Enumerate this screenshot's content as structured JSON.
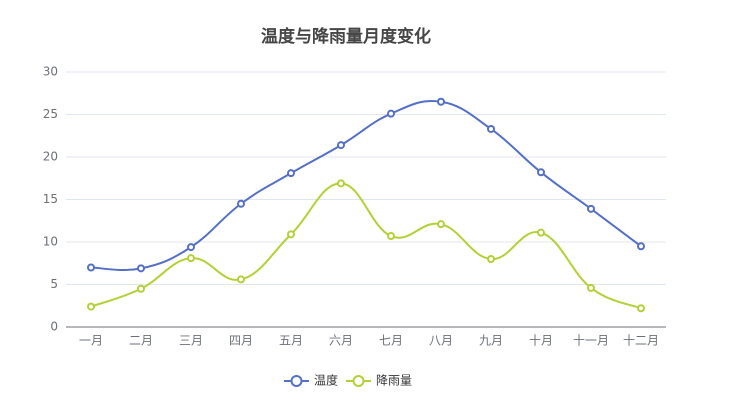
{
  "chart_data": {
    "type": "line",
    "title": "温度与降雨量月度变化",
    "categories": [
      "一月",
      "二月",
      "三月",
      "四月",
      "五月",
      "六月",
      "七月",
      "八月",
      "九月",
      "十月",
      "十一月",
      "十二月"
    ],
    "series": [
      {
        "name": "温度",
        "color": "#5470c6",
        "values": [
          7.0,
          6.9,
          9.4,
          14.5,
          18.1,
          21.4,
          25.1,
          26.5,
          23.3,
          18.2,
          13.9,
          9.5
        ]
      },
      {
        "name": "降雨量",
        "color": "#b3d136",
        "values": [
          2.4,
          4.5,
          8.1,
          5.6,
          10.9,
          16.9,
          10.7,
          12.1,
          8.0,
          11.1,
          4.6,
          2.2
        ]
      }
    ],
    "ylim": [
      0,
      30
    ],
    "yticks": [
      0,
      5,
      10,
      15,
      20,
      25,
      30
    ],
    "grid": true,
    "smooth": true,
    "legend": "bottom"
  }
}
